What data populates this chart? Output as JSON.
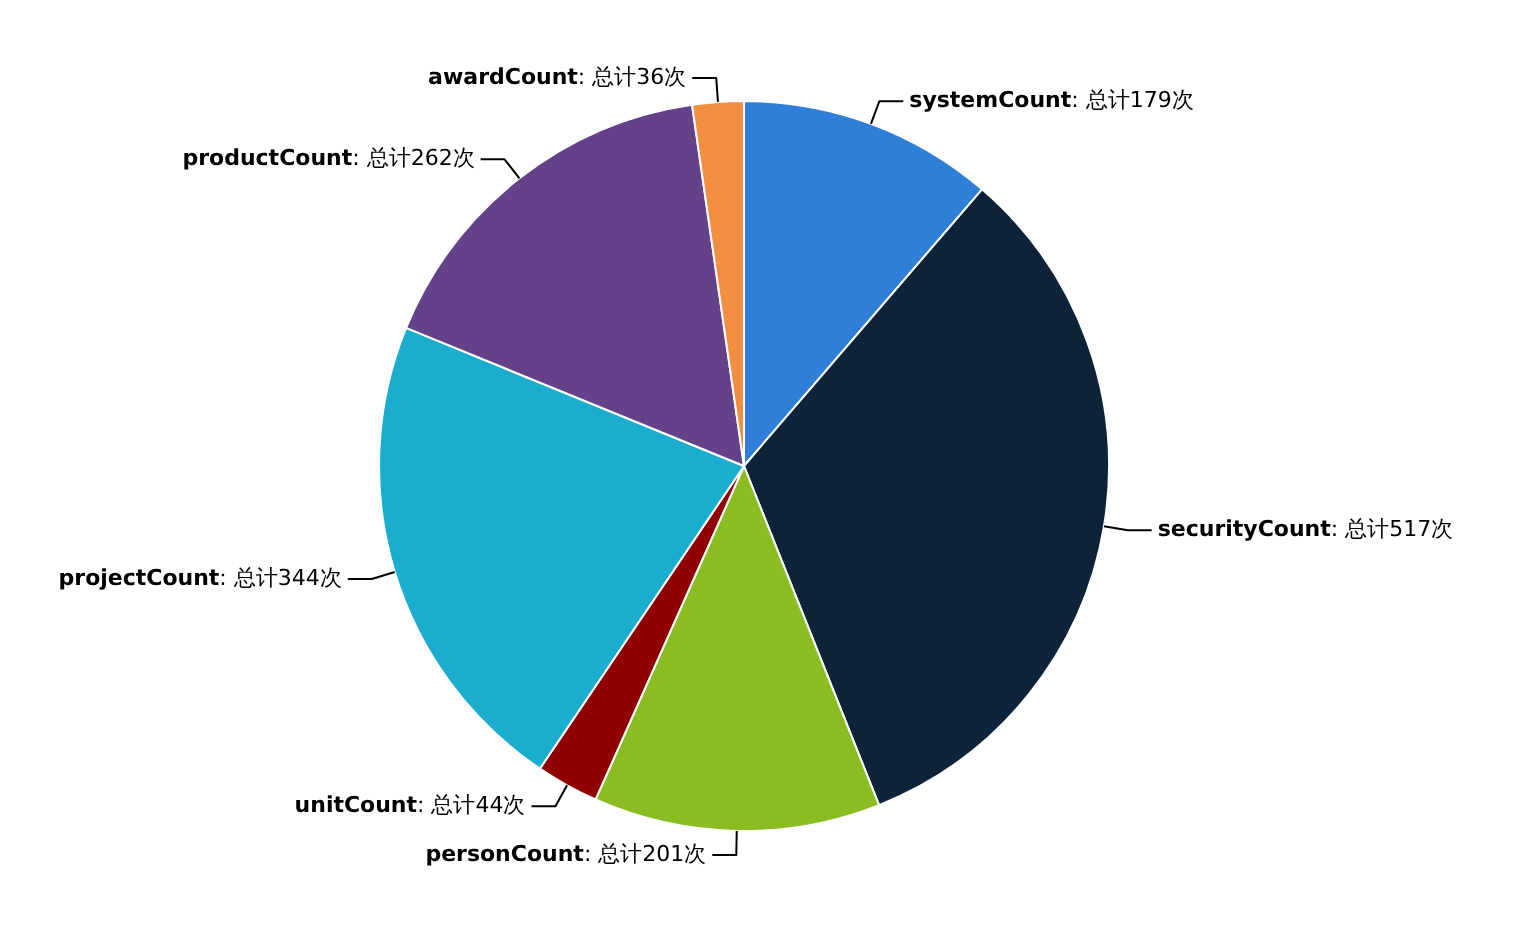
{
  "chart_data": {
    "type": "pie",
    "categories": [
      "systemCount",
      "securityCount",
      "personCount",
      "unitCount",
      "projectCount",
      "productCount",
      "awardCount"
    ],
    "values": [
      179,
      517,
      201,
      44,
      344,
      262,
      36
    ],
    "value_labels": [
      ": 总计179次",
      ": 总计517次",
      ": 总计201次",
      ": 总计44次",
      ": 总计344次",
      ": 总计262次",
      ": 总计36次"
    ],
    "colors": [
      "#2f7ed8",
      "#0d233a",
      "#8bbc21",
      "#910000",
      "#1aadce",
      "#63428a",
      "#f28f43"
    ],
    "legend": false
  }
}
